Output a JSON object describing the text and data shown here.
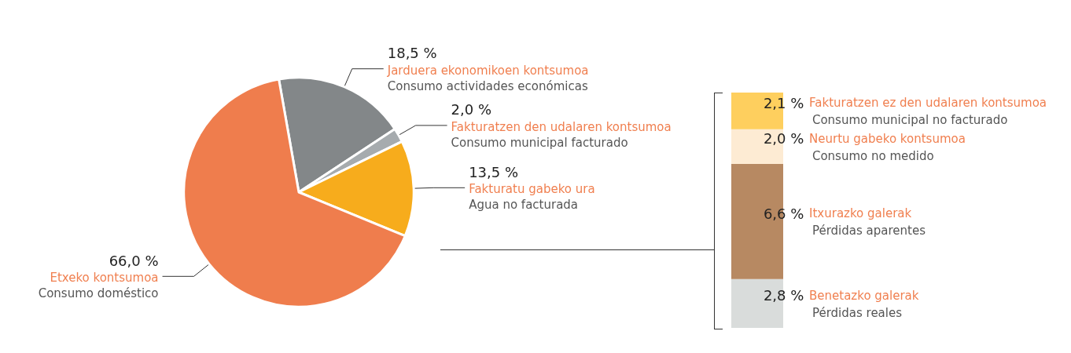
{
  "chart_data": [
    {
      "type": "pie",
      "categories": [
        "Jarduera ekonomikoen kontsumoa\nConsumo actividades económicas",
        "Fakturatzen den udalaren kontsumoa\nConsumo municipal facturado",
        "Fakturatu gabeko ura\nAgua no facturada",
        "Etxeko kontsumoa\nConsumo doméstico"
      ],
      "values": [
        18.5,
        2.0,
        13.5,
        66.0
      ],
      "colors": [
        "#838789",
        "#a6abae",
        "#f7ac1c",
        "#ef7d4d"
      ],
      "value_labels": [
        "18,5 %",
        "2,0 %",
        "13,5 %",
        "66,0 %"
      ],
      "legend": false
    },
    {
      "type": "bar",
      "stacked": true,
      "categories": [
        null
      ],
      "legend": false,
      "series": [
        {
          "name": "Benetazko galerak\nPérdidas reales",
          "color": "#d9dcdb",
          "values": [
            2.8
          ],
          "value_labels": [
            "2,8 %"
          ]
        },
        {
          "name": "Itxurazko galerak\nPérdidas aparentes",
          "color": "#b78962",
          "values": [
            6.6
          ],
          "value_labels": [
            "6,6 %"
          ]
        },
        {
          "name": "Neurtu gabeko kontsumoa\nConsumo no medido",
          "color": "#fdebd3",
          "values": [
            2.0
          ],
          "value_labels": [
            "2,0 %"
          ]
        },
        {
          "name": "Fakturatzen ez den udalaren kontsumoa\nConsumo municipal no facturado",
          "color": "#fecf5e",
          "values": [
            2.1
          ],
          "value_labels": [
            "2,1 %"
          ]
        }
      ]
    }
  ]
}
